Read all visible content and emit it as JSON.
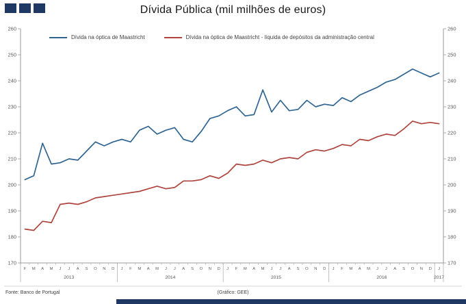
{
  "brand": {
    "navy": "#1F3864"
  },
  "chart_data": {
    "type": "line",
    "title": "Dívida Pública (mil milhões de euros)",
    "ylim": [
      170,
      260
    ],
    "ytick_step": 10,
    "grid": false,
    "legend_position": "top",
    "x_labels": [
      "F",
      "M",
      "A",
      "M",
      "J",
      "J",
      "A",
      "S",
      "O",
      "N",
      "D",
      "J",
      "F",
      "M",
      "A",
      "M",
      "J",
      "J",
      "A",
      "S",
      "O",
      "N",
      "D",
      "J",
      "F",
      "M",
      "A",
      "M",
      "J",
      "J",
      "A",
      "S",
      "O",
      "N",
      "D",
      "J",
      "F",
      "M",
      "A",
      "M",
      "J",
      "J",
      "A",
      "S",
      "O",
      "N",
      "D",
      "J"
    ],
    "year_groups": [
      {
        "year": "2013",
        "count": 11
      },
      {
        "year": "2014",
        "count": 12
      },
      {
        "year": "2015",
        "count": 12
      },
      {
        "year": "2016",
        "count": 12
      },
      {
        "year": "2017",
        "count": 1
      }
    ],
    "series": [
      {
        "name": "Dívida na óptica de Maastricht",
        "color": "#2F6491",
        "values": [
          202,
          203.5,
          216,
          208,
          208.5,
          210,
          209.5,
          213,
          216.5,
          215,
          216.5,
          217.5,
          216.5,
          221,
          222.5,
          219.5,
          221,
          222,
          217.5,
          216.5,
          220.5,
          225.5,
          226.5,
          228.5,
          230,
          226.5,
          227,
          236.5,
          228,
          232.5,
          228.5,
          229,
          232.5,
          230,
          231,
          230.5,
          233.5,
          232,
          234.5,
          236,
          237.5,
          239.5,
          240.5,
          242.5,
          244.5,
          243,
          241.5,
          243
        ]
      },
      {
        "name": "Dívida na óptica de Maastricht - líquida de depósitos da administração central",
        "color": "#AE443D",
        "values": [
          183,
          182.5,
          186,
          185.5,
          192.5,
          193,
          192.5,
          193.5,
          195,
          195.5,
          196,
          196.5,
          197,
          197.5,
          198.5,
          199.5,
          198.5,
          199,
          201.5,
          201.5,
          202,
          203.5,
          202.5,
          204.5,
          208,
          207.5,
          208,
          209.5,
          208.5,
          210,
          210.5,
          210,
          212.5,
          213.5,
          213,
          214,
          215.5,
          215,
          217.5,
          217,
          218.5,
          219.5,
          219,
          221.5,
          224.5,
          223.5,
          224,
          223.5
        ]
      }
    ],
    "source": "Fonte: Banco de Portugal",
    "credit": "(Gráfico: GEE)"
  }
}
